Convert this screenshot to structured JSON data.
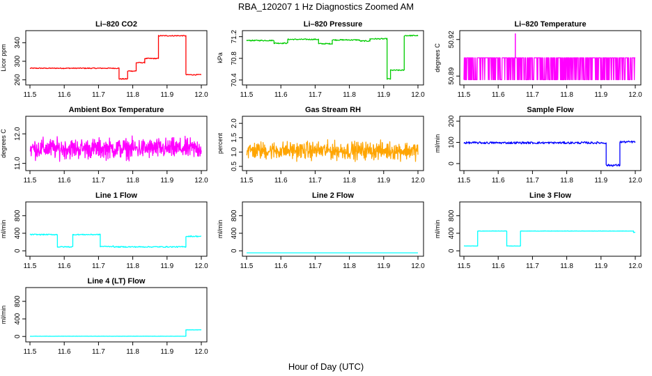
{
  "figure": {
    "title": "RBA_120207  1 Hz Diagnostics Zoomed AM",
    "xlabel": "Hour of Day (UTC)"
  },
  "chart_data": [
    {
      "type": "line",
      "title": "Li–820 CO2",
      "ylabel": "Licor ppm",
      "color": "#ff0000",
      "xlim": [
        11.5,
        12.0
      ],
      "ylim": [
        255,
        360
      ],
      "xticks": [
        "11.5",
        "11.6",
        "11.7",
        "11.8",
        "11.9",
        "12.0"
      ],
      "yticks": [
        {
          "v": 260,
          "label": "260"
        },
        {
          "v": 300,
          "label": "300"
        },
        {
          "v": 340,
          "label": "340"
        }
      ],
      "segments": [
        [
          11.5,
          11.76,
          285
        ],
        [
          11.76,
          11.785,
          262
        ],
        [
          11.785,
          11.81,
          279
        ],
        [
          11.81,
          11.835,
          297
        ],
        [
          11.835,
          11.875,
          306
        ],
        [
          11.875,
          11.955,
          355
        ],
        [
          11.955,
          12.0,
          271
        ]
      ],
      "noise": 1.0
    },
    {
      "type": "line",
      "title": "Li–820 Pressure",
      "ylabel": "kPa",
      "color": "#00cc00",
      "xlim": [
        11.5,
        12.0
      ],
      "ylim": [
        70.36,
        71.26
      ],
      "xticks": [
        "11.5",
        "11.6",
        "11.7",
        "11.8",
        "11.9",
        "12.0"
      ],
      "yticks": [
        {
          "v": 70.4,
          "label": "70.4"
        },
        {
          "v": 70.8,
          "label": "70.8"
        },
        {
          "v": 71.2,
          "label": "71.2"
        }
      ],
      "segments": [
        [
          11.5,
          11.58,
          71.13
        ],
        [
          11.58,
          11.62,
          71.08
        ],
        [
          11.62,
          11.71,
          71.15
        ],
        [
          11.71,
          11.75,
          71.07
        ],
        [
          11.75,
          11.83,
          71.14
        ],
        [
          11.83,
          11.86,
          71.12
        ],
        [
          11.86,
          11.91,
          71.16
        ],
        [
          11.91,
          11.92,
          70.42
        ],
        [
          11.92,
          11.96,
          70.58
        ],
        [
          11.96,
          12.0,
          71.22
        ]
      ],
      "noise": 0.01
    },
    {
      "type": "line",
      "title": "Li–820 Temperature",
      "ylabel": "degrees C",
      "color": "#ff00ff",
      "xlim": [
        11.5,
        12.0
      ],
      "ylim": [
        50.885,
        50.925
      ],
      "xticks": [
        "11.5",
        "11.6",
        "11.7",
        "11.8",
        "11.9",
        "12.0"
      ],
      "yticks": [
        {
          "v": 50.89,
          "label": "50.89"
        },
        {
          "v": 50.92,
          "label": "50.92"
        }
      ],
      "band": [
        50.887,
        50.905
      ],
      "spike": [
        11.65,
        50.925
      ]
    },
    {
      "type": "line",
      "title": "Ambient Box Temperature",
      "ylabel": "degrees C",
      "color": "#ff00ff",
      "xlim": [
        11.5,
        12.0
      ],
      "ylim": [
        10.85,
        12.5
      ],
      "xticks": [
        "11.5",
        "11.6",
        "11.7",
        "11.8",
        "11.9",
        "12.0"
      ],
      "yticks": [
        {
          "v": 11.0,
          "label": "11.0"
        },
        {
          "v": 12.0,
          "label": "12.0"
        }
      ],
      "center": 11.5,
      "amplitude": 0.5
    },
    {
      "type": "line",
      "title": "Gas Stream RH",
      "ylabel": "percent",
      "color": "#ffa500",
      "xlim": [
        11.5,
        12.0
      ],
      "ylim": [
        0.45,
        2.15
      ],
      "xticks": [
        "11.5",
        "11.6",
        "11.7",
        "11.8",
        "11.9",
        "12.0"
      ],
      "yticks": [
        {
          "v": 0.5,
          "label": "0.5"
        },
        {
          "v": 1.0,
          "label": "1.0"
        },
        {
          "v": 1.5,
          "label": "1.5"
        },
        {
          "v": 2.0,
          "label": "2.0"
        }
      ],
      "center": 1.05,
      "amplitude": 0.45
    },
    {
      "type": "line",
      "title": "Sample Flow",
      "ylabel": "ml/min",
      "color": "#0000ff",
      "xlim": [
        11.5,
        12.0
      ],
      "ylim": [
        -20,
        210
      ],
      "xticks": [
        "11.5",
        "11.6",
        "11.7",
        "11.8",
        "11.9",
        "12.0"
      ],
      "yticks": [
        {
          "v": 0,
          "label": "0"
        },
        {
          "v": 100,
          "label": "100"
        },
        {
          "v": 200,
          "label": "200"
        }
      ],
      "segments": [
        [
          11.5,
          11.915,
          98
        ],
        [
          11.915,
          11.955,
          -8
        ],
        [
          11.955,
          12.0,
          102
        ]
      ],
      "noise": 5
    },
    {
      "type": "line",
      "title": "Line 1 Flow",
      "ylabel": "ml/min",
      "color": "#00ffff",
      "xlim": [
        11.5,
        12.0
      ],
      "ylim": [
        -60,
        1050
      ],
      "xticks": [
        "11.5",
        "11.6",
        "11.7",
        "11.8",
        "11.9",
        "12.0"
      ],
      "yticks": [
        {
          "v": 0,
          "label": "0"
        },
        {
          "v": 400,
          "label": "400"
        },
        {
          "v": 800,
          "label": "800"
        }
      ],
      "segments": [
        [
          11.5,
          11.58,
          370
        ],
        [
          11.58,
          11.625,
          90
        ],
        [
          11.625,
          11.705,
          370
        ],
        [
          11.705,
          11.745,
          100
        ],
        [
          11.745,
          11.955,
          90
        ],
        [
          11.955,
          12.0,
          330
        ]
      ],
      "noise": 12
    },
    {
      "type": "line",
      "title": "Line 2 Flow",
      "ylabel": "ml/min",
      "color": "#00ffff",
      "xlim": [
        11.5,
        12.0
      ],
      "ylim": [
        -60,
        1050
      ],
      "xticks": [
        "11.5",
        "11.6",
        "11.7",
        "11.8",
        "11.9",
        "12.0"
      ],
      "yticks": [
        {
          "v": 0,
          "label": "0"
        },
        {
          "v": 400,
          "label": "400"
        },
        {
          "v": 800,
          "label": "800"
        }
      ],
      "segments": [
        [
          11.5,
          12.0,
          -45
        ]
      ],
      "noise": 0
    },
    {
      "type": "line",
      "title": "Line 3 Flow",
      "ylabel": "ml/min",
      "color": "#00ffff",
      "xlim": [
        11.5,
        12.0
      ],
      "ylim": [
        -60,
        1050
      ],
      "xticks": [
        "11.5",
        "11.6",
        "11.7",
        "11.8",
        "11.9",
        "12.0"
      ],
      "yticks": [
        {
          "v": 0,
          "label": "0"
        },
        {
          "v": 400,
          "label": "400"
        },
        {
          "v": 800,
          "label": "800"
        }
      ],
      "segments": [
        [
          11.5,
          11.54,
          110
        ],
        [
          11.54,
          11.625,
          450
        ],
        [
          11.625,
          11.665,
          110
        ],
        [
          11.665,
          11.995,
          450
        ],
        [
          11.995,
          12.0,
          420
        ]
      ],
      "noise": 3
    },
    {
      "type": "line",
      "title": "Line 4 (LT) Flow",
      "ylabel": "ml/min",
      "color": "#00ffff",
      "xlim": [
        11.5,
        12.0
      ],
      "ylim": [
        -60,
        1050
      ],
      "xticks": [
        "11.5",
        "11.6",
        "11.7",
        "11.8",
        "11.9",
        "12.0"
      ],
      "yticks": [
        {
          "v": 0,
          "label": "0"
        },
        {
          "v": 400,
          "label": "400"
        },
        {
          "v": 800,
          "label": "800"
        }
      ],
      "segments": [
        [
          11.5,
          11.955,
          5
        ],
        [
          11.955,
          12.0,
          150
        ]
      ],
      "noise": 2
    }
  ]
}
